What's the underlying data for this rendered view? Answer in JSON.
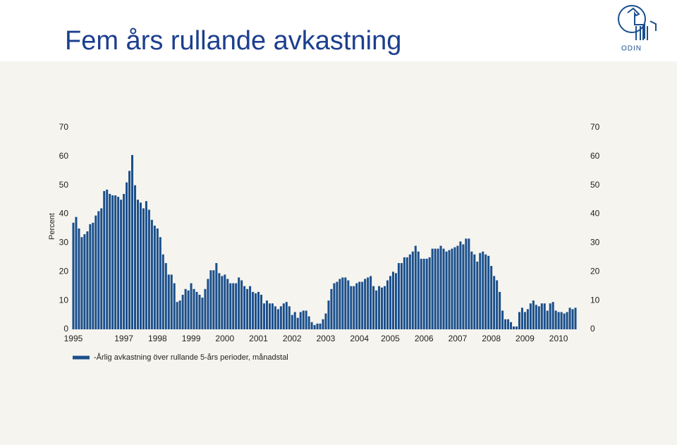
{
  "logo": "ODIN",
  "chart_data": {
    "type": "bar",
    "title": "Fem års rullande avkastning",
    "y_label": "Percent",
    "categories": [
      "1995",
      null,
      null,
      null,
      null,
      null,
      null,
      null,
      null,
      null,
      null,
      null,
      null,
      null,
      null,
      null,
      null,
      null,
      "1997",
      null,
      null,
      null,
      null,
      null,
      null,
      null,
      null,
      null,
      null,
      null,
      "1998",
      null,
      null,
      null,
      null,
      null,
      null,
      null,
      null,
      null,
      null,
      null,
      "1999",
      null,
      null,
      null,
      null,
      null,
      null,
      null,
      null,
      null,
      null,
      null,
      "2000",
      null,
      null,
      null,
      null,
      null,
      null,
      null,
      null,
      null,
      null,
      null,
      "2001",
      null,
      null,
      null,
      null,
      null,
      null,
      null,
      null,
      null,
      null,
      null,
      "2002",
      null,
      null,
      null,
      null,
      null,
      null,
      null,
      null,
      null,
      null,
      null,
      "2003",
      null,
      null,
      null,
      null,
      null,
      null,
      null,
      null,
      null,
      null,
      null,
      "2004",
      null,
      null,
      null,
      null,
      null,
      null,
      null,
      null,
      null,
      null,
      "2005",
      null,
      null,
      null,
      null,
      null,
      null,
      null,
      null,
      null,
      null,
      null,
      "2006",
      null,
      null,
      null,
      null,
      null,
      null,
      null,
      null,
      null,
      null,
      null,
      "2007",
      null,
      null,
      null,
      null,
      null,
      null,
      null,
      null,
      null,
      null,
      null,
      "2008",
      null,
      null,
      null,
      null,
      null,
      null,
      null,
      null,
      null,
      null,
      null,
      "2009",
      null,
      null,
      null,
      null,
      null,
      null,
      null,
      null,
      null,
      null,
      null,
      "2010",
      null,
      null,
      null,
      null,
      null,
      null
    ],
    "series": [
      {
        "name": "-Årlig avkastning över rullande 5-års perioder, månadstal",
        "color": "#1b4f8b",
        "values": [
          37,
          39,
          35,
          32,
          33,
          34,
          36.5,
          37,
          39.5,
          41,
          42,
          48,
          48.5,
          47,
          46.5,
          46.5,
          46,
          45,
          47,
          51,
          55,
          60.5,
          50,
          45,
          44,
          42,
          44.5,
          41.5,
          38,
          36,
          35,
          32,
          26,
          23,
          19,
          19,
          16,
          9.5,
          10,
          12,
          14,
          13.5,
          16,
          14,
          13,
          12,
          11,
          14,
          17.5,
          20.5,
          20.5,
          23,
          19.5,
          18.5,
          19,
          17.5,
          16,
          16,
          16,
          18,
          17,
          15,
          14,
          15,
          13,
          12.5,
          13,
          12,
          9,
          10,
          9,
          9,
          8,
          7,
          8,
          9,
          9.5,
          8,
          5,
          6,
          4,
          6,
          6.5,
          6.5,
          4.5,
          2.5,
          1.5,
          2,
          2,
          3.5,
          5.5,
          10,
          14,
          16,
          16.5,
          17.5,
          18,
          18,
          17,
          15,
          15,
          16,
          16.5,
          16.5,
          17.5,
          18,
          18.5,
          15,
          13.5,
          15,
          14.5,
          15,
          17,
          18.5,
          20,
          19.5,
          23,
          23,
          25,
          25,
          26,
          27,
          29,
          27,
          24.5,
          24.5,
          24.5,
          25,
          28,
          28,
          28,
          29,
          28,
          27,
          27.5,
          28,
          28.5,
          29,
          30.5,
          29.5,
          31.5,
          31.5,
          27,
          26,
          23.5,
          26.5,
          27,
          26,
          25.5,
          22,
          18.5,
          17,
          13,
          6.5,
          3.5,
          3.5,
          2.5,
          1,
          1,
          6,
          7.5,
          6,
          7,
          9,
          10,
          8.5,
          8,
          9,
          9,
          6.5,
          9,
          9.5,
          6.5,
          6,
          6,
          5.5,
          6,
          7.5,
          7,
          7.5
        ]
      }
    ],
    "ylim": [
      0,
      70
    ],
    "yticks": [
      0,
      10,
      20,
      30,
      40,
      50,
      60,
      70
    ],
    "y2lim": [
      0,
      70
    ],
    "y2ticks": [
      0,
      10,
      20,
      30,
      40,
      50,
      60,
      70
    ],
    "legend": "bottom-left"
  }
}
